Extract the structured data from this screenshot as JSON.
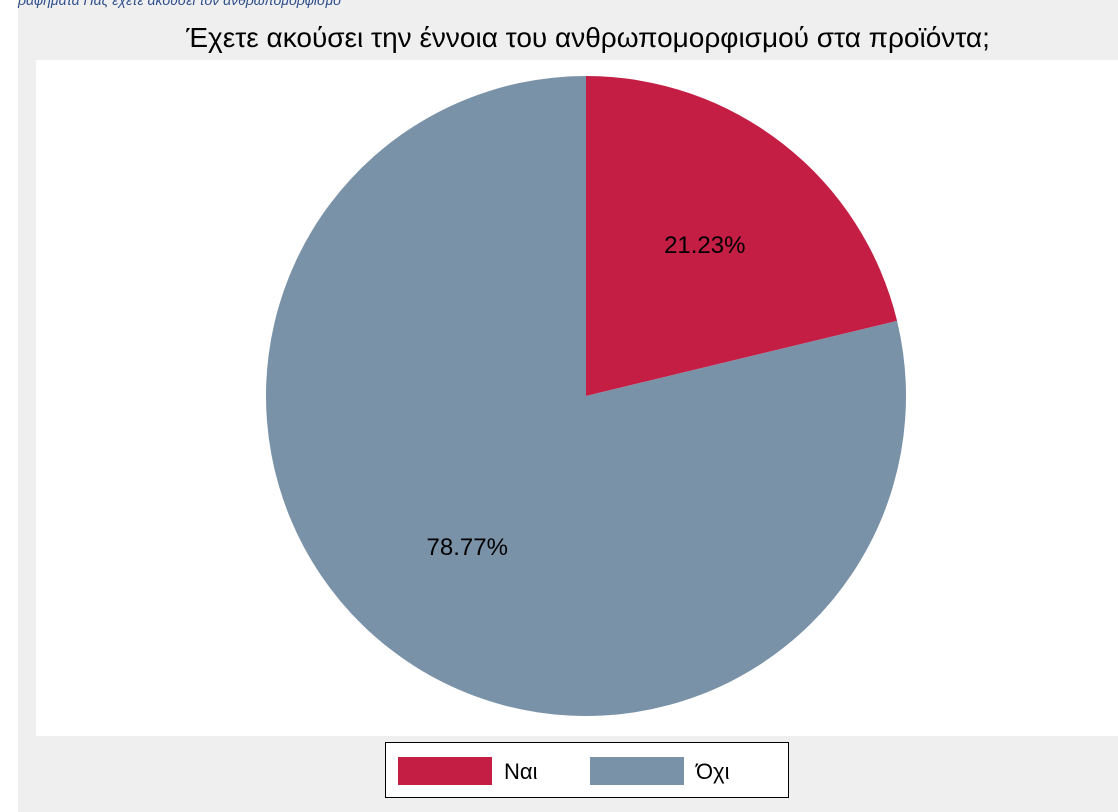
{
  "caption": "ραφήματα Πας έχετε ακούσει τον ανθρωπομορφισμό",
  "colors": {
    "background": "#efefef",
    "plot_background": "#ffffff",
    "nai": "#c41e45",
    "ochi": "#7a92a8"
  },
  "chart_data": {
    "type": "pie",
    "title": "Έχετε ακούσει την έννοια του ανθρωπομορφισμού στα προϊόντα;",
    "categories": [
      "Ναι",
      "Όχι"
    ],
    "values": [
      21.23,
      78.77
    ],
    "labels": [
      "21.23%",
      "78.77%"
    ],
    "colors": [
      "#c41e45",
      "#7a92a8"
    ],
    "start_angle": "12 o'clock",
    "direction": "clockwise",
    "legend_position": "bottom"
  }
}
